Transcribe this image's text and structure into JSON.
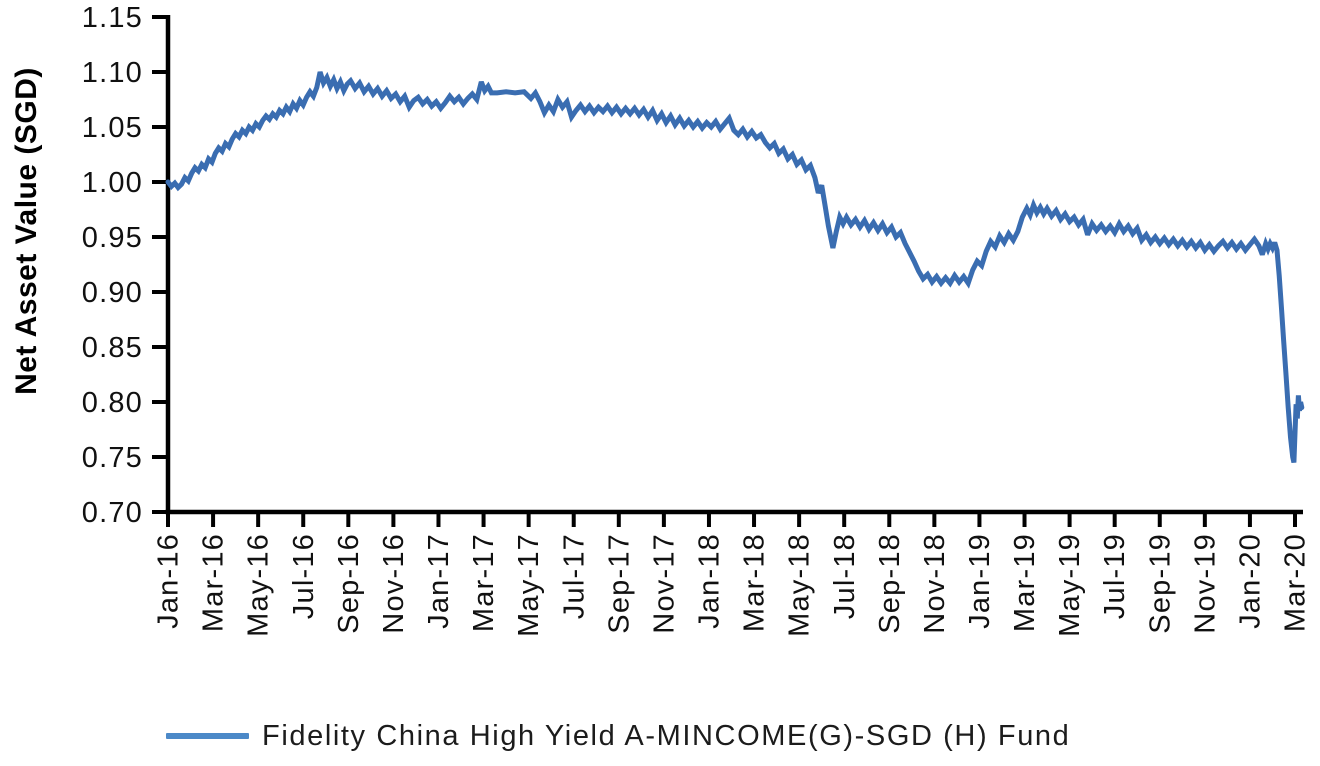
{
  "chart_data": {
    "type": "line",
    "title": "",
    "xlabel": "",
    "ylabel": "Net Asset Value (SGD)",
    "ylim": [
      0.7,
      1.15
    ],
    "ytick_step": 0.05,
    "grid": false,
    "legend_position": "bottom-left",
    "yticks": [
      "0.70",
      "0.75",
      "0.80",
      "0.85",
      "0.90",
      "0.95",
      "1.00",
      "1.05",
      "1.10",
      "1.15"
    ],
    "xticks": [
      "Jan-16",
      "Mar-16",
      "May-16",
      "Jul-16",
      "Sep-16",
      "Nov-16",
      "Jan-17",
      "Mar-17",
      "May-17",
      "Jul-17",
      "Sep-17",
      "Nov-17",
      "Jan-18",
      "Mar-18",
      "May-18",
      "Jul-18",
      "Sep-18",
      "Nov-18",
      "Jan-19",
      "Mar-19",
      "May-19",
      "Jul-19",
      "Sep-19",
      "Nov-19",
      "Jan-20",
      "Mar-20"
    ],
    "x_unit": "months since Jan-2016 (2 months per labeled tick)",
    "series": [
      {
        "name": "Fidelity China High Yield A-MINCOME(G)-SGD (H) Fund",
        "color": "#3a6db1",
        "swatch_color": "#4c89c8",
        "points": [
          [
            0,
            1.0
          ],
          [
            0.15,
            0.996
          ],
          [
            0.3,
            0.999
          ],
          [
            0.45,
            0.995
          ],
          [
            0.6,
            0.998
          ],
          [
            0.75,
            1.004
          ],
          [
            0.9,
            1.001
          ],
          [
            1.05,
            1.008
          ],
          [
            1.2,
            1.013
          ],
          [
            1.35,
            1.01
          ],
          [
            1.5,
            1.016
          ],
          [
            1.65,
            1.013
          ],
          [
            1.8,
            1.021
          ],
          [
            1.95,
            1.018
          ],
          [
            2.1,
            1.026
          ],
          [
            2.25,
            1.031
          ],
          [
            2.4,
            1.028
          ],
          [
            2.55,
            1.035
          ],
          [
            2.7,
            1.032
          ],
          [
            2.85,
            1.039
          ],
          [
            3,
            1.044
          ],
          [
            3.15,
            1.041
          ],
          [
            3.3,
            1.047
          ],
          [
            3.45,
            1.044
          ],
          [
            3.6,
            1.05
          ],
          [
            3.75,
            1.047
          ],
          [
            3.9,
            1.053
          ],
          [
            4.05,
            1.05
          ],
          [
            4.2,
            1.056
          ],
          [
            4.35,
            1.06
          ],
          [
            4.5,
            1.057
          ],
          [
            4.65,
            1.062
          ],
          [
            4.8,
            1.059
          ],
          [
            4.95,
            1.065
          ],
          [
            5.1,
            1.062
          ],
          [
            5.25,
            1.068
          ],
          [
            5.4,
            1.064
          ],
          [
            5.55,
            1.071
          ],
          [
            5.7,
            1.067
          ],
          [
            5.85,
            1.074
          ],
          [
            6,
            1.07
          ],
          [
            6.15,
            1.077
          ],
          [
            6.3,
            1.082
          ],
          [
            6.45,
            1.078
          ],
          [
            6.6,
            1.086
          ],
          [
            6.75,
            1.1
          ],
          [
            6.9,
            1.09
          ],
          [
            7.05,
            1.095
          ],
          [
            7.2,
            1.087
          ],
          [
            7.35,
            1.093
          ],
          [
            7.5,
            1.085
          ],
          [
            7.65,
            1.091
          ],
          [
            7.8,
            1.083
          ],
          [
            7.95,
            1.089
          ],
          [
            8.1,
            1.092
          ],
          [
            8.3,
            1.085
          ],
          [
            8.5,
            1.09
          ],
          [
            8.7,
            1.082
          ],
          [
            8.9,
            1.087
          ],
          [
            9.1,
            1.08
          ],
          [
            9.3,
            1.085
          ],
          [
            9.5,
            1.078
          ],
          [
            9.7,
            1.083
          ],
          [
            9.9,
            1.076
          ],
          [
            10.1,
            1.08
          ],
          [
            10.3,
            1.073
          ],
          [
            10.5,
            1.078
          ],
          [
            10.7,
            1.068
          ],
          [
            10.9,
            1.074
          ],
          [
            11.1,
            1.077
          ],
          [
            11.3,
            1.071
          ],
          [
            11.5,
            1.075
          ],
          [
            11.7,
            1.069
          ],
          [
            11.9,
            1.073
          ],
          [
            12.1,
            1.067
          ],
          [
            12.3,
            1.072
          ],
          [
            12.5,
            1.078
          ],
          [
            12.7,
            1.073
          ],
          [
            12.9,
            1.077
          ],
          [
            13.1,
            1.071
          ],
          [
            13.3,
            1.076
          ],
          [
            13.5,
            1.08
          ],
          [
            13.7,
            1.075
          ],
          [
            13.9,
            1.091
          ],
          [
            14.05,
            1.083
          ],
          [
            14.2,
            1.087
          ],
          [
            14.35,
            1.081
          ],
          [
            14.6,
            1.081
          ],
          [
            15,
            1.082
          ],
          [
            15.4,
            1.081
          ],
          [
            15.8,
            1.082
          ],
          [
            16.1,
            1.076
          ],
          [
            16.3,
            1.081
          ],
          [
            16.5,
            1.073
          ],
          [
            16.7,
            1.063
          ],
          [
            16.9,
            1.07
          ],
          [
            17.1,
            1.064
          ],
          [
            17.3,
            1.075
          ],
          [
            17.5,
            1.068
          ],
          [
            17.7,
            1.073
          ],
          [
            17.9,
            1.059
          ],
          [
            18.1,
            1.065
          ],
          [
            18.3,
            1.07
          ],
          [
            18.5,
            1.064
          ],
          [
            18.7,
            1.069
          ],
          [
            18.9,
            1.063
          ],
          [
            19.1,
            1.068
          ],
          [
            19.3,
            1.064
          ],
          [
            19.5,
            1.069
          ],
          [
            19.7,
            1.063
          ],
          [
            19.9,
            1.068
          ],
          [
            20.1,
            1.062
          ],
          [
            20.3,
            1.067
          ],
          [
            20.5,
            1.062
          ],
          [
            20.7,
            1.067
          ],
          [
            20.9,
            1.061
          ],
          [
            21.1,
            1.066
          ],
          [
            21.3,
            1.059
          ],
          [
            21.5,
            1.065
          ],
          [
            21.7,
            1.056
          ],
          [
            21.9,
            1.062
          ],
          [
            22.1,
            1.054
          ],
          [
            22.3,
            1.06
          ],
          [
            22.5,
            1.052
          ],
          [
            22.7,
            1.058
          ],
          [
            22.9,
            1.051
          ],
          [
            23.1,
            1.056
          ],
          [
            23.3,
            1.05
          ],
          [
            23.5,
            1.055
          ],
          [
            23.7,
            1.049
          ],
          [
            23.9,
            1.054
          ],
          [
            24.1,
            1.05
          ],
          [
            24.3,
            1.055
          ],
          [
            24.5,
            1.048
          ],
          [
            24.7,
            1.053
          ],
          [
            24.9,
            1.058
          ],
          [
            25.1,
            1.047
          ],
          [
            25.3,
            1.043
          ],
          [
            25.5,
            1.048
          ],
          [
            25.7,
            1.041
          ],
          [
            25.9,
            1.046
          ],
          [
            26.1,
            1.04
          ],
          [
            26.3,
            1.043
          ],
          [
            26.5,
            1.036
          ],
          [
            26.7,
            1.031
          ],
          [
            26.9,
            1.035
          ],
          [
            27.1,
            1.026
          ],
          [
            27.3,
            1.03
          ],
          [
            27.5,
            1.021
          ],
          [
            27.7,
            1.025
          ],
          [
            27.9,
            1.016
          ],
          [
            28.1,
            1.02
          ],
          [
            28.3,
            1.011
          ],
          [
            28.5,
            1.015
          ],
          [
            28.7,
            1.004
          ],
          [
            28.85,
            0.99
          ],
          [
            29,
            0.997
          ],
          [
            29.15,
            0.979
          ],
          [
            29.3,
            0.96
          ],
          [
            29.5,
            0.94
          ],
          [
            29.65,
            0.955
          ],
          [
            29.8,
            0.968
          ],
          [
            29.95,
            0.962
          ],
          [
            30.1,
            0.968
          ],
          [
            30.3,
            0.961
          ],
          [
            30.5,
            0.966
          ],
          [
            30.7,
            0.959
          ],
          [
            30.9,
            0.965
          ],
          [
            31.1,
            0.957
          ],
          [
            31.3,
            0.963
          ],
          [
            31.5,
            0.956
          ],
          [
            31.7,
            0.962
          ],
          [
            31.9,
            0.954
          ],
          [
            32.1,
            0.959
          ],
          [
            32.3,
            0.95
          ],
          [
            32.5,
            0.954
          ],
          [
            32.7,
            0.944
          ],
          [
            32.9,
            0.936
          ],
          [
            33.1,
            0.928
          ],
          [
            33.3,
            0.919
          ],
          [
            33.5,
            0.912
          ],
          [
            33.7,
            0.916
          ],
          [
            33.9,
            0.909
          ],
          [
            34.1,
            0.914
          ],
          [
            34.3,
            0.908
          ],
          [
            34.5,
            0.913
          ],
          [
            34.7,
            0.908
          ],
          [
            34.9,
            0.915
          ],
          [
            35.1,
            0.909
          ],
          [
            35.3,
            0.914
          ],
          [
            35.5,
            0.908
          ],
          [
            35.7,
            0.92
          ],
          [
            35.9,
            0.928
          ],
          [
            36.1,
            0.924
          ],
          [
            36.3,
            0.937
          ],
          [
            36.5,
            0.946
          ],
          [
            36.7,
            0.941
          ],
          [
            36.9,
            0.951
          ],
          [
            37.1,
            0.945
          ],
          [
            37.3,
            0.953
          ],
          [
            37.5,
            0.947
          ],
          [
            37.7,
            0.955
          ],
          [
            37.9,
            0.968
          ],
          [
            38.1,
            0.976
          ],
          [
            38.25,
            0.97
          ],
          [
            38.4,
            0.979
          ],
          [
            38.55,
            0.972
          ],
          [
            38.7,
            0.977
          ],
          [
            38.85,
            0.971
          ],
          [
            39,
            0.976
          ],
          [
            39.2,
            0.969
          ],
          [
            39.4,
            0.974
          ],
          [
            39.6,
            0.966
          ],
          [
            39.8,
            0.971
          ],
          [
            40,
            0.964
          ],
          [
            40.2,
            0.968
          ],
          [
            40.4,
            0.961
          ],
          [
            40.6,
            0.966
          ],
          [
            40.8,
            0.952
          ],
          [
            41,
            0.962
          ],
          [
            41.2,
            0.956
          ],
          [
            41.4,
            0.961
          ],
          [
            41.6,
            0.955
          ],
          [
            41.8,
            0.96
          ],
          [
            42,
            0.954
          ],
          [
            42.2,
            0.962
          ],
          [
            42.4,
            0.955
          ],
          [
            42.6,
            0.96
          ],
          [
            42.8,
            0.953
          ],
          [
            43,
            0.958
          ],
          [
            43.2,
            0.947
          ],
          [
            43.4,
            0.952
          ],
          [
            43.6,
            0.945
          ],
          [
            43.8,
            0.95
          ],
          [
            44,
            0.944
          ],
          [
            44.2,
            0.949
          ],
          [
            44.4,
            0.943
          ],
          [
            44.6,
            0.948
          ],
          [
            44.8,
            0.942
          ],
          [
            45,
            0.947
          ],
          [
            45.2,
            0.941
          ],
          [
            45.4,
            0.946
          ],
          [
            45.6,
            0.94
          ],
          [
            45.8,
            0.945
          ],
          [
            46,
            0.938
          ],
          [
            46.2,
            0.943
          ],
          [
            46.4,
            0.937
          ],
          [
            46.6,
            0.942
          ],
          [
            46.8,
            0.946
          ],
          [
            47,
            0.94
          ],
          [
            47.2,
            0.945
          ],
          [
            47.4,
            0.939
          ],
          [
            47.6,
            0.944
          ],
          [
            47.8,
            0.938
          ],
          [
            48,
            0.943
          ],
          [
            48.2,
            0.948
          ],
          [
            48.4,
            0.942
          ],
          [
            48.55,
            0.934
          ],
          [
            48.7,
            0.944
          ],
          [
            48.8,
            0.939
          ],
          [
            48.9,
            0.944
          ],
          [
            49,
            0.94
          ],
          [
            49.1,
            0.945
          ],
          [
            49.2,
            0.938
          ],
          [
            49.3,
            0.915
          ],
          [
            49.4,
            0.885
          ],
          [
            49.5,
            0.855
          ],
          [
            49.6,
            0.825
          ],
          [
            49.7,
            0.795
          ],
          [
            49.8,
            0.768
          ],
          [
            49.9,
            0.75
          ],
          [
            49.95,
            0.745
          ],
          [
            50,
            0.772
          ],
          [
            50.05,
            0.798
          ],
          [
            50.1,
            0.785
          ],
          [
            50.15,
            0.806
          ],
          [
            50.2,
            0.792
          ],
          [
            50.25,
            0.8
          ],
          [
            50.3,
            0.795
          ]
        ]
      }
    ]
  },
  "legend": {
    "label": "Fidelity China High Yield A-MINCOME(G)-SGD (H) Fund",
    "swatch_color": "#4c89c8"
  },
  "colors": {
    "axis": "#000000",
    "tick_text": "#111111",
    "line": "#3a6db1",
    "background": "#ffffff"
  }
}
